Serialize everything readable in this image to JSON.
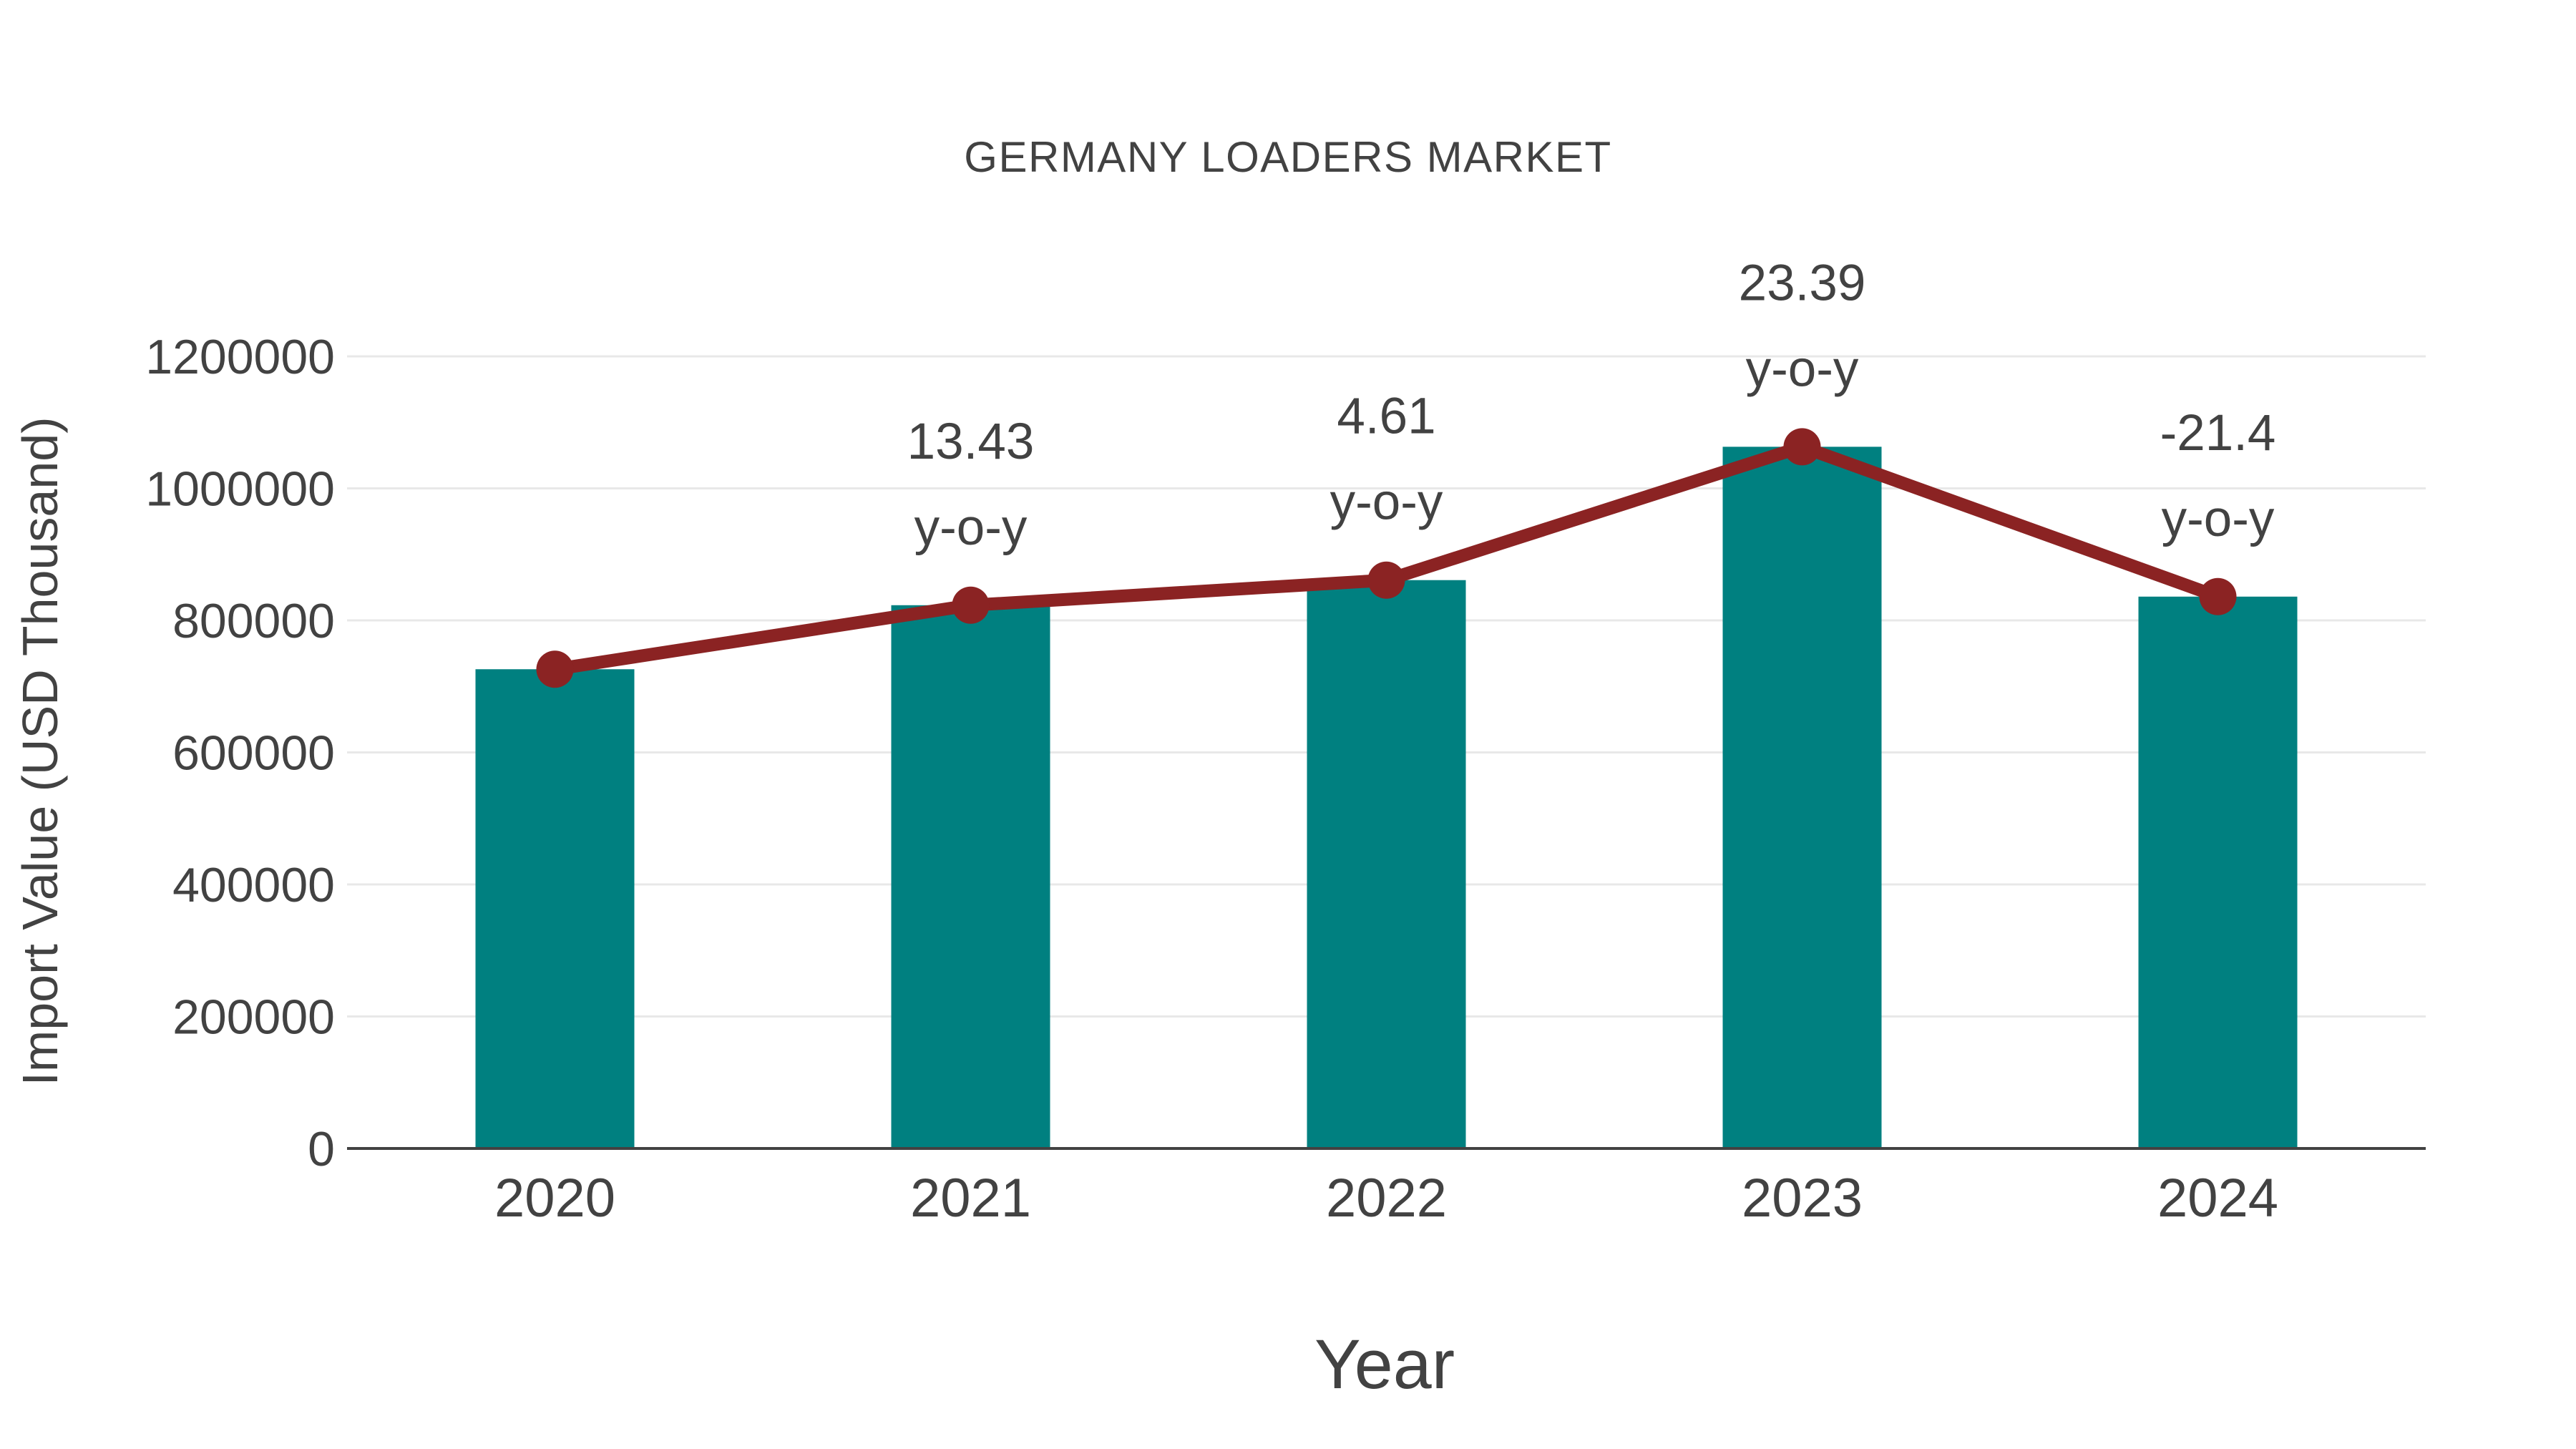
{
  "page": {
    "background": "#ffffff"
  },
  "chart_data": {
    "type": "combo",
    "title": "GERMANY LOADERS MARKET",
    "xlabel": "Year",
    "ylabel": "Import Value (USD Thousand)",
    "categories": [
      "2020",
      "2021",
      "2022",
      "2023",
      "2024"
    ],
    "series": [
      {
        "name": "import-value-bars",
        "type": "bar",
        "color": "#008080",
        "values": [
          726000,
          823000,
          861000,
          1063000,
          836000
        ]
      },
      {
        "name": "trend-line",
        "type": "line",
        "color": "#8B2323",
        "values": [
          726000,
          823000,
          861000,
          1063000,
          836000
        ]
      }
    ],
    "annotations": [
      {
        "category": "2021",
        "value": "13.43",
        "unit": "y-o-y"
      },
      {
        "category": "2022",
        "value": "4.61",
        "unit": "y-o-y"
      },
      {
        "category": "2023",
        "value": "23.39",
        "unit": "y-o-y"
      },
      {
        "category": "2024",
        "value": "-21.4",
        "unit": "y-o-y"
      }
    ],
    "ylim": [
      0,
      1200000
    ],
    "yticks": [
      0,
      200000,
      400000,
      600000,
      800000,
      1000000,
      1200000
    ],
    "grid": true,
    "legend": false,
    "colors": {
      "grid": "#E8E8E8",
      "axis_line": "#424242",
      "text": "#424242"
    }
  }
}
